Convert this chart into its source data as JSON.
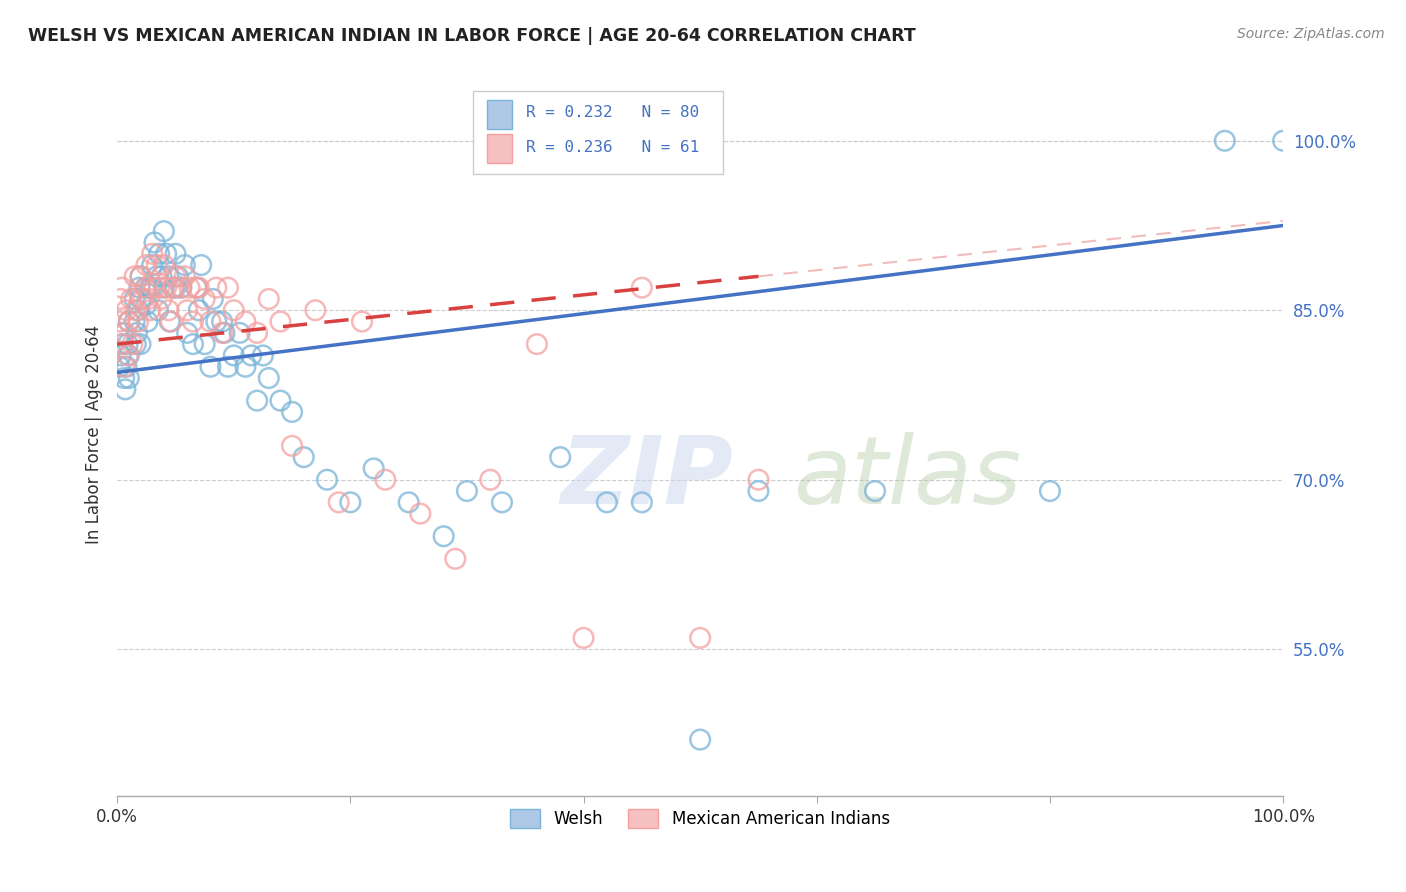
{
  "title": "WELSH VS MEXICAN AMERICAN INDIAN IN LABOR FORCE | AGE 20-64 CORRELATION CHART",
  "source": "Source: ZipAtlas.com",
  "ylabel": "In Labor Force | Age 20-64",
  "xlim": [
    0.0,
    1.0
  ],
  "ylim": [
    0.42,
    1.06
  ],
  "yticks": [
    0.55,
    0.7,
    0.85,
    1.0
  ],
  "ytick_labels": [
    "55.0%",
    "70.0%",
    "85.0%",
    "100.0%"
  ],
  "xticks": [
    0.0,
    0.2,
    0.4,
    0.6,
    0.8,
    1.0
  ],
  "xtick_labels": [
    "0.0%",
    "",
    "",
    "",
    "",
    "100.0%"
  ],
  "blue_color": "#7ab4d8",
  "pink_color": "#f4a0a0",
  "trendline_blue_color": "#4472C4",
  "trendline_pink_color": "#d94040",
  "watermark_zip": "ZIP",
  "watermark_atlas": "atlas",
  "background_color": "#ffffff",
  "welsh_x": [
    0.002,
    0.003,
    0.004,
    0.005,
    0.006,
    0.007,
    0.008,
    0.009,
    0.01,
    0.01,
    0.01,
    0.015,
    0.015,
    0.016,
    0.017,
    0.018,
    0.019,
    0.02,
    0.02,
    0.02,
    0.025,
    0.025,
    0.026,
    0.028,
    0.03,
    0.03,
    0.032,
    0.034,
    0.035,
    0.036,
    0.038,
    0.04,
    0.04,
    0.042,
    0.044,
    0.045,
    0.048,
    0.05,
    0.05,
    0.052,
    0.055,
    0.058,
    0.06,
    0.065,
    0.068,
    0.07,
    0.072,
    0.075,
    0.08,
    0.082,
    0.085,
    0.09,
    0.092,
    0.095,
    0.1,
    0.105,
    0.11,
    0.115,
    0.12,
    0.125,
    0.13,
    0.14,
    0.15,
    0.16,
    0.18,
    0.2,
    0.22,
    0.25,
    0.28,
    0.3,
    0.33,
    0.38,
    0.42,
    0.45,
    0.5,
    0.55,
    0.65,
    0.8,
    0.95,
    1.0
  ],
  "welsh_y": [
    0.8,
    0.81,
    0.82,
    0.83,
    0.79,
    0.78,
    0.8,
    0.82,
    0.84,
    0.81,
    0.79,
    0.86,
    0.84,
    0.82,
    0.83,
    0.85,
    0.87,
    0.86,
    0.88,
    0.82,
    0.87,
    0.855,
    0.84,
    0.87,
    0.89,
    0.87,
    0.91,
    0.88,
    0.85,
    0.9,
    0.88,
    0.92,
    0.87,
    0.9,
    0.88,
    0.84,
    0.87,
    0.9,
    0.87,
    0.88,
    0.87,
    0.89,
    0.83,
    0.82,
    0.87,
    0.85,
    0.89,
    0.82,
    0.8,
    0.86,
    0.84,
    0.84,
    0.83,
    0.8,
    0.81,
    0.83,
    0.8,
    0.81,
    0.77,
    0.81,
    0.79,
    0.77,
    0.76,
    0.72,
    0.7,
    0.68,
    0.71,
    0.68,
    0.65,
    0.69,
    0.68,
    0.72,
    0.68,
    0.68,
    0.47,
    0.69,
    0.69,
    0.69,
    1.0,
    1.0
  ],
  "mexican_x": [
    0.002,
    0.003,
    0.004,
    0.005,
    0.006,
    0.007,
    0.008,
    0.009,
    0.01,
    0.012,
    0.013,
    0.015,
    0.016,
    0.018,
    0.02,
    0.022,
    0.024,
    0.025,
    0.027,
    0.028,
    0.03,
    0.032,
    0.034,
    0.036,
    0.038,
    0.04,
    0.042,
    0.044,
    0.046,
    0.048,
    0.05,
    0.055,
    0.058,
    0.06,
    0.062,
    0.065,
    0.068,
    0.07,
    0.075,
    0.08,
    0.085,
    0.09,
    0.095,
    0.1,
    0.11,
    0.12,
    0.13,
    0.14,
    0.15,
    0.17,
    0.19,
    0.21,
    0.23,
    0.26,
    0.29,
    0.32,
    0.36,
    0.4,
    0.45,
    0.5,
    0.55
  ],
  "mexican_y": [
    0.84,
    0.86,
    0.87,
    0.82,
    0.8,
    0.83,
    0.85,
    0.81,
    0.84,
    0.86,
    0.82,
    0.88,
    0.85,
    0.84,
    0.88,
    0.86,
    0.87,
    0.89,
    0.86,
    0.85,
    0.9,
    0.87,
    0.89,
    0.87,
    0.86,
    0.89,
    0.87,
    0.85,
    0.84,
    0.87,
    0.88,
    0.87,
    0.88,
    0.85,
    0.87,
    0.84,
    0.87,
    0.87,
    0.86,
    0.84,
    0.87,
    0.83,
    0.87,
    0.85,
    0.84,
    0.83,
    0.86,
    0.84,
    0.73,
    0.85,
    0.68,
    0.84,
    0.7,
    0.67,
    0.63,
    0.7,
    0.82,
    0.56,
    0.87,
    0.56,
    0.7
  ],
  "trendline_blue_x0": 0.0,
  "trendline_blue_y0": 0.795,
  "trendline_blue_x1": 1.0,
  "trendline_blue_y1": 0.925,
  "trendline_pink_x0": 0.0,
  "trendline_pink_y0": 0.82,
  "trendline_pink_x1": 0.55,
  "trendline_pink_y1": 0.88
}
